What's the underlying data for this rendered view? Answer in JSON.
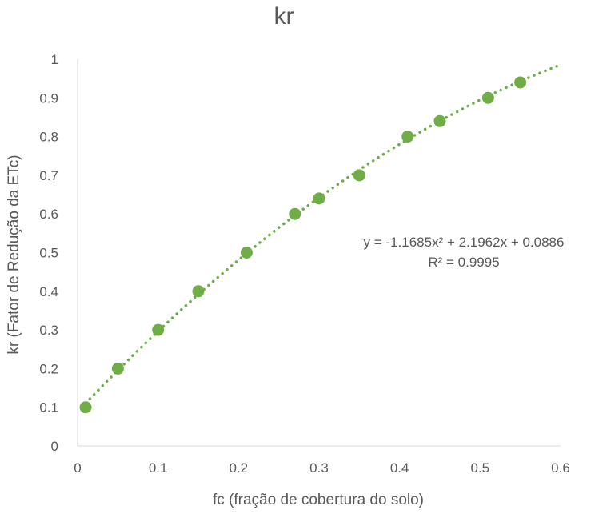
{
  "chart_data": {
    "type": "scatter",
    "title": "kr",
    "xlabel": "fc (fração de cobertura do solo)",
    "ylabel": "kr  (Fator de Redução da ETc)",
    "xlim": [
      0,
      0.6
    ],
    "ylim": [
      0,
      1
    ],
    "xticks": [
      0,
      0.1,
      0.2,
      0.3,
      0.4,
      0.5,
      0.6
    ],
    "yticks": [
      0,
      0.1,
      0.2,
      0.3,
      0.4,
      0.5,
      0.6,
      0.7,
      0.8,
      0.9,
      1
    ],
    "xtick_labels": [
      "0",
      "0.1",
      "0.2",
      "0.3",
      "0.4",
      "0.5",
      "0.6"
    ],
    "ytick_labels": [
      "0",
      "0.1",
      "0.2",
      "0.3",
      "0.4",
      "0.5",
      "0.6",
      "0.7",
      "0.8",
      "0.9",
      "1"
    ],
    "grid": false,
    "legend": "none",
    "marker_color": "#70AD47",
    "series": [
      {
        "points": [
          {
            "x": 0.01,
            "y": 0.1
          },
          {
            "x": 0.05,
            "y": 0.2
          },
          {
            "x": 0.1,
            "y": 0.3
          },
          {
            "x": 0.15,
            "y": 0.4
          },
          {
            "x": 0.21,
            "y": 0.5
          },
          {
            "x": 0.27,
            "y": 0.6
          },
          {
            "x": 0.3,
            "y": 0.64
          },
          {
            "x": 0.35,
            "y": 0.7
          },
          {
            "x": 0.41,
            "y": 0.8
          },
          {
            "x": 0.45,
            "y": 0.84
          },
          {
            "x": 0.51,
            "y": 0.9
          },
          {
            "x": 0.55,
            "y": 0.94
          }
        ]
      }
    ],
    "trendline": {
      "type": "polynomial",
      "coefficients": [
        -1.1685,
        2.1962,
        0.0886
      ],
      "style": "dotted",
      "x_range": [
        0.01,
        0.6
      ]
    },
    "annotations": {
      "equation": "y = -1.1685x² + 2.1962x + 0.0886",
      "r_squared": "R² = 0.9995"
    }
  }
}
